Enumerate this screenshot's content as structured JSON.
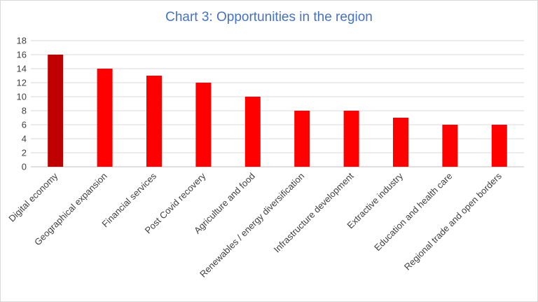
{
  "chart_data": {
    "type": "bar",
    "title": "Chart 3: Opportunities in the region",
    "categories": [
      "Digital economy",
      "Geographical expansion",
      "Financial services",
      "Post Covid recovery",
      "Agriculture and food",
      "Renewables / energy diversification",
      "Infrastructure development",
      "Extractive industry",
      "Education and health care",
      "Regional trade and open borders"
    ],
    "values": [
      16,
      14,
      13,
      12,
      10,
      8,
      8,
      7,
      6,
      6
    ],
    "ylim": [
      0,
      18
    ],
    "yticks": [
      0,
      2,
      4,
      6,
      8,
      10,
      12,
      14,
      16,
      18
    ],
    "grid": true,
    "colors": {
      "highlight": "#c00000",
      "bar": "#ff0000",
      "title": "#4472c4"
    }
  }
}
